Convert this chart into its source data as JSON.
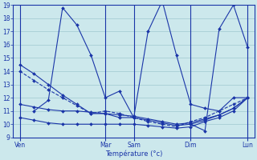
{
  "background_color": "#cce8ec",
  "grid_color": "#9fc8d0",
  "line_color": "#1a35a8",
  "xlabel": "Température (°c)",
  "ylim": [
    9,
    19
  ],
  "yticks": [
    9,
    10,
    11,
    12,
    13,
    14,
    15,
    16,
    17,
    18,
    19
  ],
  "xlim": [
    -0.5,
    16.5
  ],
  "vlines": [
    0,
    6,
    8,
    12,
    16
  ],
  "day_positions": [
    0,
    6,
    8,
    12,
    16
  ],
  "day_labels": [
    "Ven",
    "Mar",
    "Sam",
    "Dim",
    "Lun"
  ],
  "lines": [
    {
      "x": [
        0,
        1,
        2,
        3,
        4,
        5,
        6,
        7,
        8,
        9,
        10,
        11,
        12,
        13,
        14,
        15,
        16
      ],
      "y": [
        14.5,
        13.8,
        13.0,
        12.2,
        11.5,
        10.8,
        10.8,
        10.5,
        10.5,
        10.3,
        10.1,
        9.9,
        10.0,
        10.3,
        10.7,
        11.2,
        12.0
      ],
      "linestyle": "-",
      "marker": "D",
      "markersize": 2.0
    },
    {
      "x": [
        0,
        1,
        2,
        3,
        4,
        5,
        6,
        7,
        8,
        9,
        10,
        11,
        12,
        13,
        14,
        15,
        16
      ],
      "y": [
        14.0,
        13.3,
        12.6,
        12.0,
        11.4,
        10.8,
        11.0,
        10.8,
        10.5,
        10.2,
        10.0,
        9.8,
        10.2,
        10.5,
        11.0,
        11.5,
        12.0
      ],
      "linestyle": "--",
      "marker": "D",
      "markersize": 2.0
    },
    {
      "comment": "Nearly flat ~11.5->11->10->10->12",
      "x": [
        0,
        1,
        2,
        3,
        4,
        5,
        6,
        7,
        8,
        9,
        10,
        11,
        12,
        13,
        14,
        15,
        16
      ],
      "y": [
        11.5,
        11.3,
        11.1,
        11.0,
        11.0,
        10.9,
        10.8,
        10.7,
        10.6,
        10.4,
        10.2,
        10.0,
        10.1,
        10.4,
        10.7,
        11.2,
        12.0
      ],
      "linestyle": "-",
      "marker": "D",
      "markersize": 2.0
    },
    {
      "comment": "Low flat ~10.5->10->10->10->12",
      "x": [
        0,
        1,
        2,
        3,
        4,
        5,
        6,
        7,
        8,
        9,
        10,
        11,
        12,
        13,
        14,
        15,
        16
      ],
      "y": [
        10.5,
        10.3,
        10.1,
        10.0,
        10.0,
        10.0,
        10.0,
        10.0,
        10.0,
        9.9,
        9.8,
        9.7,
        9.8,
        10.2,
        10.5,
        11.0,
        12.0
      ],
      "linestyle": "-",
      "marker": "D",
      "markersize": 2.0
    },
    {
      "x": [
        1,
        2,
        3,
        4,
        5,
        6,
        7,
        8,
        9,
        10,
        11,
        12,
        13,
        14,
        15,
        16
      ],
      "y": [
        11.0,
        11.8,
        18.8,
        17.5,
        15.2,
        12.0,
        12.5,
        10.5,
        17.0,
        19.3,
        15.2,
        11.5,
        11.2,
        11.0,
        12.0,
        12.0
      ],
      "linestyle": "-",
      "marker": "D",
      "markersize": 2.0
    },
    {
      "x": [
        12,
        13,
        14,
        15,
        16
      ],
      "y": [
        10.0,
        9.5,
        17.2,
        19.0,
        15.8
      ],
      "linestyle": "-",
      "marker": "D",
      "markersize": 2.0
    }
  ]
}
